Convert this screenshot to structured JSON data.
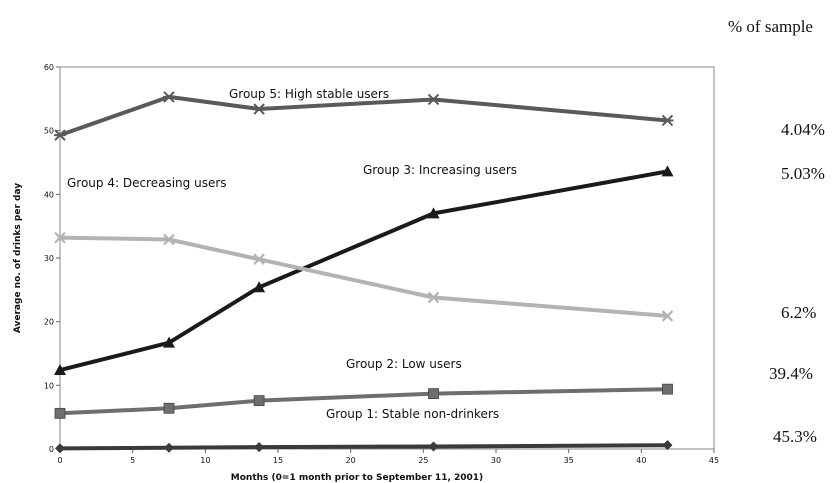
{
  "chart_data": {
    "type": "line",
    "title": "",
    "xlabel": "Months (0=1 month prior to September 11, 2001)",
    "ylabel": "Average no. of drinks per day",
    "xlim": [
      0,
      45
    ],
    "ylim": [
      0,
      60
    ],
    "xticks": [
      0,
      5,
      10,
      15,
      20,
      25,
      30,
      35,
      40,
      45
    ],
    "yticks": [
      0,
      10,
      20,
      30,
      40,
      50,
      60
    ],
    "grid": false,
    "legend": "none",
    "column_header": "% of sample",
    "x": [
      0,
      7.5,
      13.7,
      25.7,
      41.8
    ],
    "series": [
      {
        "label": "Group 5: High stable users",
        "percent": "4.04%",
        "values": [
          49.3,
          55.3,
          53.4,
          54.9,
          51.6
        ],
        "color": "#5a5a5a",
        "marker": "star"
      },
      {
        "label": "Group 3: Increasing users",
        "percent": "5.03%",
        "values": [
          12.4,
          16.7,
          25.4,
          37.0,
          43.6
        ],
        "color": "#1a1a1a",
        "marker": "triangle"
      },
      {
        "label": "Group 4: Decreasing users",
        "percent": "6.2%",
        "values": [
          33.2,
          32.9,
          29.8,
          23.8,
          20.9
        ],
        "color": "#b3b3b3",
        "marker": "x"
      },
      {
        "label": "Group 2: Low users",
        "percent": "39.4%",
        "values": [
          5.6,
          6.4,
          7.6,
          8.7,
          9.4
        ],
        "color": "#6e6e6e",
        "marker": "square"
      },
      {
        "label": "Group 1: Stable non-drinkers",
        "percent": "45.3%",
        "values": [
          0.1,
          0.2,
          0.3,
          0.4,
          0.6
        ],
        "color": "#3a3a3a",
        "marker": "diamond"
      }
    ]
  }
}
